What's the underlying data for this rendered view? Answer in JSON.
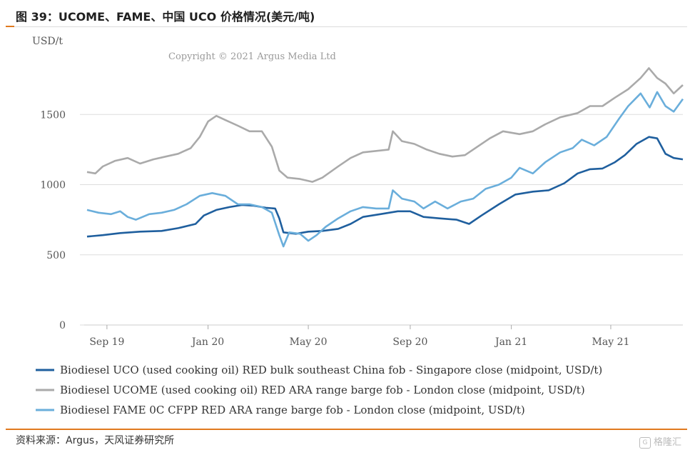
{
  "title": "图 39：UCOME、FAME、中国 UCO 价格情况(美元/吨)",
  "source": "资料来源：Argus，天风证券研究所",
  "watermark": "格隆汇",
  "chart_data": {
    "type": "line",
    "ylabel": "USD/t",
    "ylim": [
      0,
      2000
    ],
    "yticks": [
      0,
      500,
      1000,
      1500
    ],
    "xticks": [
      {
        "label": "Sep 19",
        "date": "2019-09-15"
      },
      {
        "label": "Jan 20",
        "date": "2020-01-15"
      },
      {
        "label": "May 20",
        "date": "2020-05-15"
      },
      {
        "label": "Sep 20",
        "date": "2020-09-15"
      },
      {
        "label": "Jan 21",
        "date": "2021-01-15"
      },
      {
        "label": "May 21",
        "date": "2021-05-15"
      }
    ],
    "x_range": [
      "2019-08-22",
      "2021-08-10"
    ],
    "copyright": "Copyright © 2021 Argus Media Ltd",
    "grid": "horizontal",
    "legend_position": "bottom",
    "series": [
      {
        "name": "Biodiesel UCO (used cooking oil) RED bulk southeast China fob - Singapore close (midpoint, USD/t)",
        "color": "#1f5f9e",
        "points": [
          [
            "2019-08-22",
            630
          ],
          [
            "2019-09-10",
            640
          ],
          [
            "2019-10-01",
            655
          ],
          [
            "2019-10-25",
            665
          ],
          [
            "2019-11-20",
            670
          ],
          [
            "2019-12-10",
            690
          ],
          [
            "2019-12-31",
            720
          ],
          [
            "2020-01-10",
            780
          ],
          [
            "2020-01-25",
            820
          ],
          [
            "2020-02-10",
            840
          ],
          [
            "2020-02-25",
            855
          ],
          [
            "2020-03-10",
            850
          ],
          [
            "2020-03-25",
            835
          ],
          [
            "2020-04-05",
            830
          ],
          [
            "2020-04-10",
            760
          ],
          [
            "2020-04-15",
            660
          ],
          [
            "2020-04-30",
            650
          ],
          [
            "2020-05-15",
            665
          ],
          [
            "2020-06-01",
            670
          ],
          [
            "2020-06-20",
            685
          ],
          [
            "2020-07-05",
            720
          ],
          [
            "2020-07-20",
            770
          ],
          [
            "2020-08-10",
            790
          ],
          [
            "2020-08-31",
            810
          ],
          [
            "2020-09-15",
            810
          ],
          [
            "2020-10-01",
            770
          ],
          [
            "2020-10-20",
            760
          ],
          [
            "2020-11-10",
            750
          ],
          [
            "2020-11-25",
            720
          ],
          [
            "2020-12-10",
            780
          ],
          [
            "2020-12-31",
            860
          ],
          [
            "2021-01-20",
            930
          ],
          [
            "2021-02-10",
            950
          ],
          [
            "2021-03-01",
            960
          ],
          [
            "2021-03-20",
            1010
          ],
          [
            "2021-04-05",
            1080
          ],
          [
            "2021-04-20",
            1110
          ],
          [
            "2021-05-05",
            1115
          ],
          [
            "2021-05-20",
            1160
          ],
          [
            "2021-06-01",
            1210
          ],
          [
            "2021-06-15",
            1290
          ],
          [
            "2021-06-30",
            1340
          ],
          [
            "2021-07-10",
            1330
          ],
          [
            "2021-07-20",
            1220
          ],
          [
            "2021-07-30",
            1190
          ],
          [
            "2021-08-10",
            1180
          ]
        ]
      },
      {
        "name": "Biodiesel UCOME (used cooking oil) RED ARA range barge fob - London close (midpoint, USD/t)",
        "color": "#aaaaaa",
        "points": [
          [
            "2019-08-22",
            1090
          ],
          [
            "2019-09-01",
            1080
          ],
          [
            "2019-09-10",
            1130
          ],
          [
            "2019-09-25",
            1170
          ],
          [
            "2019-10-10",
            1190
          ],
          [
            "2019-10-25",
            1150
          ],
          [
            "2019-11-10",
            1180
          ],
          [
            "2019-11-25",
            1200
          ],
          [
            "2019-12-10",
            1220
          ],
          [
            "2019-12-25",
            1260
          ],
          [
            "2020-01-05",
            1340
          ],
          [
            "2020-01-15",
            1450
          ],
          [
            "2020-01-25",
            1490
          ],
          [
            "2020-02-05",
            1460
          ],
          [
            "2020-02-20",
            1420
          ],
          [
            "2020-03-05",
            1380
          ],
          [
            "2020-03-20",
            1380
          ],
          [
            "2020-04-01",
            1270
          ],
          [
            "2020-04-10",
            1100
          ],
          [
            "2020-04-20",
            1050
          ],
          [
            "2020-05-05",
            1040
          ],
          [
            "2020-05-20",
            1020
          ],
          [
            "2020-06-01",
            1050
          ],
          [
            "2020-06-20",
            1130
          ],
          [
            "2020-07-05",
            1190
          ],
          [
            "2020-07-20",
            1230
          ],
          [
            "2020-08-05",
            1240
          ],
          [
            "2020-08-20",
            1250
          ],
          [
            "2020-08-25",
            1380
          ],
          [
            "2020-09-05",
            1310
          ],
          [
            "2020-09-20",
            1290
          ],
          [
            "2020-10-05",
            1250
          ],
          [
            "2020-10-20",
            1220
          ],
          [
            "2020-11-05",
            1200
          ],
          [
            "2020-11-20",
            1210
          ],
          [
            "2020-12-05",
            1270
          ],
          [
            "2020-12-20",
            1330
          ],
          [
            "2021-01-05",
            1380
          ],
          [
            "2021-01-25",
            1360
          ],
          [
            "2021-02-10",
            1380
          ],
          [
            "2021-02-25",
            1430
          ],
          [
            "2021-03-15",
            1480
          ],
          [
            "2021-04-05",
            1510
          ],
          [
            "2021-04-20",
            1560
          ],
          [
            "2021-05-05",
            1560
          ],
          [
            "2021-05-20",
            1620
          ],
          [
            "2021-06-05",
            1680
          ],
          [
            "2021-06-20",
            1760
          ],
          [
            "2021-06-30",
            1830
          ],
          [
            "2021-07-10",
            1760
          ],
          [
            "2021-07-20",
            1720
          ],
          [
            "2021-07-30",
            1650
          ],
          [
            "2021-08-10",
            1710
          ]
        ]
      },
      {
        "name": "Biodiesel FAME 0C CFPP RED ARA range barge fob - London close (midpoint, USD/t)",
        "color": "#6aaedb",
        "points": [
          [
            "2019-08-22",
            820
          ],
          [
            "2019-09-05",
            800
          ],
          [
            "2019-09-20",
            790
          ],
          [
            "2019-10-01",
            810
          ],
          [
            "2019-10-10",
            770
          ],
          [
            "2019-10-20",
            750
          ],
          [
            "2019-11-05",
            790
          ],
          [
            "2019-11-20",
            800
          ],
          [
            "2019-12-05",
            820
          ],
          [
            "2019-12-20",
            860
          ],
          [
            "2020-01-05",
            920
          ],
          [
            "2020-01-20",
            940
          ],
          [
            "2020-02-05",
            920
          ],
          [
            "2020-02-20",
            860
          ],
          [
            "2020-03-05",
            860
          ],
          [
            "2020-03-20",
            840
          ],
          [
            "2020-04-01",
            800
          ],
          [
            "2020-04-10",
            640
          ],
          [
            "2020-04-15",
            560
          ],
          [
            "2020-04-22",
            660
          ],
          [
            "2020-05-05",
            650
          ],
          [
            "2020-05-15",
            600
          ],
          [
            "2020-05-25",
            640
          ],
          [
            "2020-06-05",
            700
          ],
          [
            "2020-06-20",
            760
          ],
          [
            "2020-07-05",
            810
          ],
          [
            "2020-07-20",
            840
          ],
          [
            "2020-08-05",
            830
          ],
          [
            "2020-08-20",
            830
          ],
          [
            "2020-08-25",
            960
          ],
          [
            "2020-09-05",
            900
          ],
          [
            "2020-09-20",
            880
          ],
          [
            "2020-10-01",
            830
          ],
          [
            "2020-10-15",
            880
          ],
          [
            "2020-10-30",
            830
          ],
          [
            "2020-11-15",
            880
          ],
          [
            "2020-11-30",
            900
          ],
          [
            "2020-12-15",
            970
          ],
          [
            "2020-12-31",
            1000
          ],
          [
            "2021-01-15",
            1050
          ],
          [
            "2021-01-25",
            1120
          ],
          [
            "2021-02-10",
            1080
          ],
          [
            "2021-02-25",
            1160
          ],
          [
            "2021-03-15",
            1230
          ],
          [
            "2021-03-30",
            1260
          ],
          [
            "2021-04-10",
            1320
          ],
          [
            "2021-04-25",
            1280
          ],
          [
            "2021-05-10",
            1340
          ],
          [
            "2021-05-25",
            1470
          ],
          [
            "2021-06-05",
            1560
          ],
          [
            "2021-06-20",
            1650
          ],
          [
            "2021-07-01",
            1550
          ],
          [
            "2021-07-10",
            1660
          ],
          [
            "2021-07-20",
            1560
          ],
          [
            "2021-07-30",
            1520
          ],
          [
            "2021-08-10",
            1610
          ]
        ]
      }
    ]
  }
}
